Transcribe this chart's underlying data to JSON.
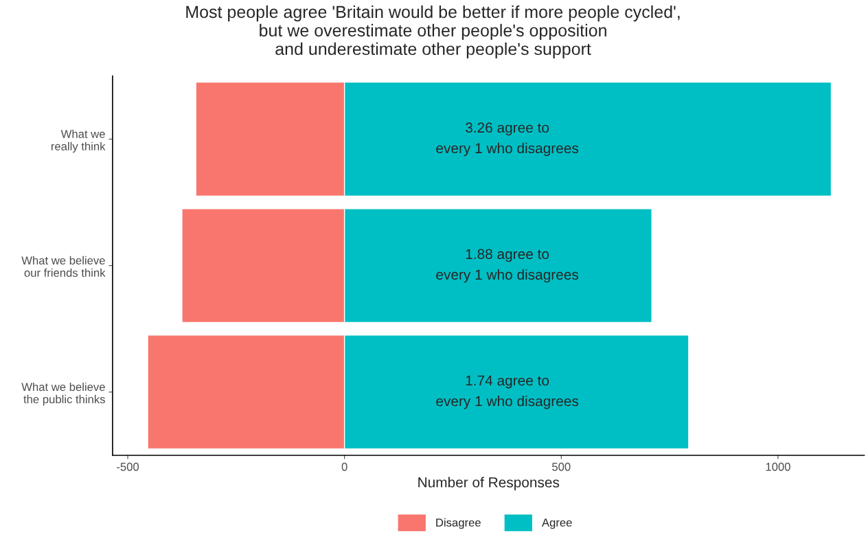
{
  "chart_data": {
    "type": "bar",
    "orientation": "horizontal",
    "stacked": true,
    "title": "Most people agree 'Britain would be better if more people cycled',\nbut we overestimate other people's opposition\nand underestimate other people's support",
    "xlabel": "Number of Responses",
    "categories": [
      "What we\nreally think",
      "What we believe\nour friends think",
      "What we believe\nthe public thinks"
    ],
    "series": [
      {
        "name": "Disagree",
        "color": "#f8766d",
        "values": [
          -343,
          -375,
          -454
        ]
      },
      {
        "name": "Agree",
        "color": "#00bfc4",
        "values": [
          1123,
          709,
          794
        ]
      }
    ],
    "xlim": [
      -535,
      1199
    ],
    "xticks": [
      -500,
      0,
      500,
      1000
    ],
    "annotations": [
      "3.26 agree to\nevery 1 who disagrees",
      "1.88 agree to\nevery 1 who disagrees",
      "1.74 agree to\nevery 1 who disagrees"
    ],
    "grid": false,
    "legend": "bottom"
  }
}
